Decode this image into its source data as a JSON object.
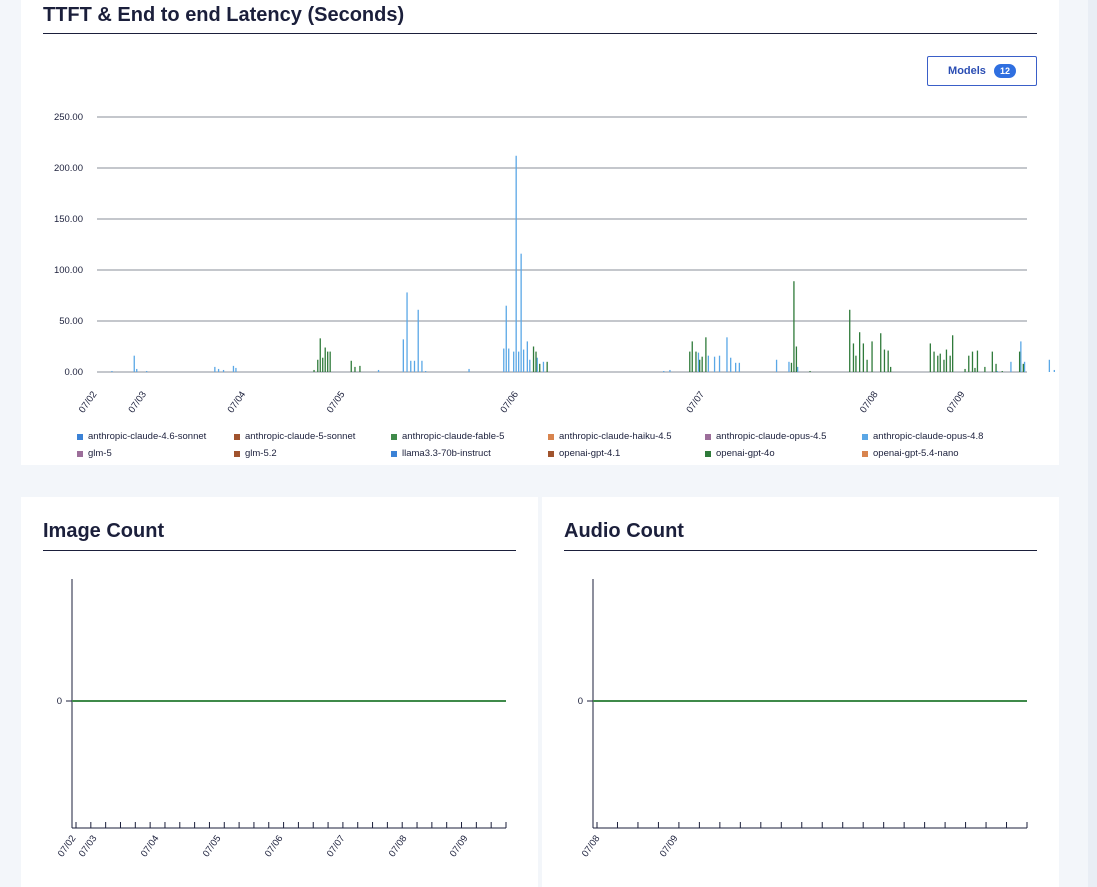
{
  "latency_panel": {
    "title": "TTFT & End to end Latency (Seconds)",
    "models_button": {
      "label": "Models",
      "count": "12"
    },
    "legend": [
      {
        "name": "anthropic-claude-4.6-sonnet",
        "color": "#3b82d6"
      },
      {
        "name": "anthropic-claude-5-sonnet",
        "color": "#a0532d"
      },
      {
        "name": "anthropic-claude-fable-5",
        "color": "#3f8a4a"
      },
      {
        "name": "anthropic-claude-haiku-4.5",
        "color": "#d8844e"
      },
      {
        "name": "anthropic-claude-opus-4.5",
        "color": "#9c6e9a"
      },
      {
        "name": "anthropic-claude-opus-4.8",
        "color": "#5aa7e6"
      },
      {
        "name": "glm-5",
        "color": "#9c6e9a"
      },
      {
        "name": "glm-5.2",
        "color": "#a0532d"
      },
      {
        "name": "llama3.3-70b-instruct",
        "color": "#3b82d6"
      },
      {
        "name": "openai-gpt-4.1",
        "color": "#a0532d"
      },
      {
        "name": "openai-gpt-4o",
        "color": "#2f7a3a"
      },
      {
        "name": "openai-gpt-5.4-nano",
        "color": "#d8844e"
      }
    ]
  },
  "image_panel": {
    "title": "Image Count"
  },
  "audio_panel": {
    "title": "Audio Count"
  },
  "chart_data": [
    {
      "type": "bar",
      "title": "TTFT & End to end Latency (Seconds)",
      "xlabel": "",
      "ylabel": "",
      "ylim": [
        0,
        250
      ],
      "yticks": [
        "0.00",
        "50.00",
        "100.00",
        "150.00",
        "200.00",
        "250.00"
      ],
      "xlim": [
        0,
        7.5
      ],
      "xtick_labels": [
        {
          "label": "07/02",
          "x": 0.0
        },
        {
          "label": "07/03",
          "x": 0.4
        },
        {
          "label": "07/04",
          "x": 1.2
        },
        {
          "label": "07/05",
          "x": 2.0
        },
        {
          "label": "07/06",
          "x": 3.4
        },
        {
          "label": "07/07",
          "x": 4.9
        },
        {
          "label": "07/08",
          "x": 6.3
        },
        {
          "label": "07/09",
          "x": 7.0
        }
      ],
      "grid": true,
      "legend_position": "bottom",
      "series": [
        {
          "name": "anthropic-claude-opus-4.8",
          "color": "#5aa7e6",
          "points": [
            [
              0.12,
              1
            ],
            [
              0.3,
              16
            ],
            [
              0.32,
              3
            ],
            [
              0.4,
              1
            ],
            [
              0.95,
              5
            ],
            [
              0.98,
              3
            ],
            [
              1.02,
              2
            ],
            [
              1.1,
              6
            ],
            [
              1.12,
              4
            ],
            [
              2.27,
              2
            ],
            [
              2.47,
              32
            ],
            [
              2.5,
              78
            ],
            [
              2.53,
              11
            ],
            [
              2.56,
              11
            ],
            [
              2.59,
              61
            ],
            [
              2.62,
              11
            ],
            [
              2.65,
              1
            ],
            [
              3.0,
              3
            ],
            [
              3.28,
              23
            ],
            [
              3.3,
              65
            ],
            [
              3.32,
              23
            ],
            [
              3.36,
              20
            ],
            [
              3.38,
              212
            ],
            [
              3.4,
              20
            ],
            [
              3.42,
              116
            ],
            [
              3.44,
              22
            ],
            [
              3.47,
              30
            ],
            [
              3.49,
              12
            ],
            [
              3.55,
              14
            ],
            [
              3.6,
              10
            ],
            [
              4.57,
              1
            ],
            [
              4.62,
              2
            ],
            [
              4.85,
              19
            ],
            [
              4.93,
              16
            ],
            [
              4.98,
              15
            ],
            [
              5.02,
              16
            ],
            [
              5.08,
              34
            ],
            [
              5.11,
              14
            ],
            [
              5.15,
              9
            ],
            [
              5.18,
              9
            ],
            [
              5.48,
              12
            ],
            [
              5.58,
              10
            ],
            [
              5.65,
              5
            ],
            [
              7.26,
              1
            ],
            [
              7.37,
              10
            ],
            [
              7.45,
              30
            ],
            [
              7.48,
              10
            ],
            [
              7.68,
              12
            ],
            [
              7.72,
              2
            ],
            [
              7.78,
              10
            ]
          ]
        },
        {
          "name": "openai-gpt-4o",
          "color": "#2f7a3a",
          "points": [
            [
              1.75,
              2
            ],
            [
              1.78,
              12
            ],
            [
              1.8,
              33
            ],
            [
              1.82,
              14
            ],
            [
              1.84,
              24
            ],
            [
              1.86,
              20
            ],
            [
              1.88,
              20
            ],
            [
              2.05,
              11
            ],
            [
              2.08,
              5
            ],
            [
              2.12,
              6
            ],
            [
              3.52,
              25
            ],
            [
              3.54,
              20
            ],
            [
              3.57,
              8
            ],
            [
              3.63,
              10
            ],
            [
              4.78,
              20
            ],
            [
              4.8,
              30
            ],
            [
              4.83,
              20
            ],
            [
              4.86,
              12
            ],
            [
              4.88,
              15
            ],
            [
              4.91,
              34
            ],
            [
              5.6,
              9
            ],
            [
              5.62,
              89
            ],
            [
              5.64,
              25
            ],
            [
              5.75,
              1
            ],
            [
              6.07,
              61
            ],
            [
              6.1,
              28
            ],
            [
              6.12,
              16
            ],
            [
              6.15,
              39
            ],
            [
              6.18,
              28
            ],
            [
              6.21,
              12
            ],
            [
              6.25,
              30
            ],
            [
              6.32,
              38
            ],
            [
              6.35,
              22
            ],
            [
              6.38,
              21
            ],
            [
              6.4,
              5
            ],
            [
              6.72,
              28
            ],
            [
              6.75,
              20
            ],
            [
              6.78,
              16
            ],
            [
              6.8,
              18
            ],
            [
              6.83,
              12
            ],
            [
              6.85,
              22
            ],
            [
              6.88,
              16
            ],
            [
              6.9,
              36
            ],
            [
              7.0,
              3
            ],
            [
              7.03,
              16
            ],
            [
              7.06,
              20
            ],
            [
              7.08,
              4
            ],
            [
              7.1,
              21
            ],
            [
              7.16,
              5
            ],
            [
              7.22,
              20
            ],
            [
              7.25,
              8
            ],
            [
              7.3,
              1
            ],
            [
              7.44,
              20
            ],
            [
              7.47,
              8
            ]
          ]
        }
      ]
    },
    {
      "type": "line",
      "title": "Image Count",
      "yticks": [
        "0"
      ],
      "ylim": [
        -1,
        1
      ],
      "xtick_labels": [
        "07/02",
        "07/03",
        "07/04",
        "07/05",
        "07/06",
        "07/07",
        "07/08",
        "07/09"
      ],
      "series": [
        {
          "values": [
            0,
            0
          ]
        }
      ],
      "color": "#3f8a4a"
    },
    {
      "type": "line",
      "title": "Audio Count",
      "yticks": [
        "0"
      ],
      "ylim": [
        -1,
        1
      ],
      "xtick_labels": [
        "07/08",
        "07/09"
      ],
      "series": [
        {
          "values": [
            0,
            0
          ]
        }
      ],
      "color": "#3f8a4a"
    }
  ]
}
